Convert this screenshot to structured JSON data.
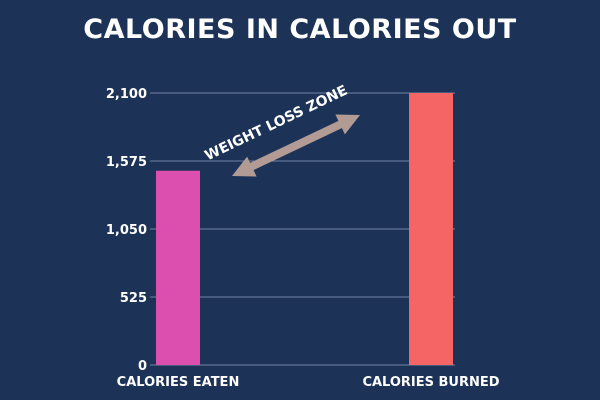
{
  "chart_data": {
    "type": "bar",
    "title": "CALORIES IN CALORIES OUT",
    "xlabel": "",
    "ylabel": "",
    "categories": [
      "CALORIES EATEN",
      "CALORIES BURNED"
    ],
    "values": [
      1500,
      2100
    ],
    "colors": [
      "#dd4fae",
      "#f56565"
    ],
    "ylim": [
      0,
      2100
    ],
    "yticks": [
      {
        "value": 0,
        "label": "0"
      },
      {
        "value": 525,
        "label": "525"
      },
      {
        "value": 1050,
        "label": "1,050"
      },
      {
        "value": 1575,
        "label": "1,575"
      },
      {
        "value": 2100,
        "label": "2,100"
      }
    ],
    "grid": true,
    "gridline_color": "#6f83a3",
    "annotation": {
      "text": "WEIGHT LOSS ZONE",
      "arrow": "double-headed",
      "arrow_color": "#b29a95"
    }
  }
}
